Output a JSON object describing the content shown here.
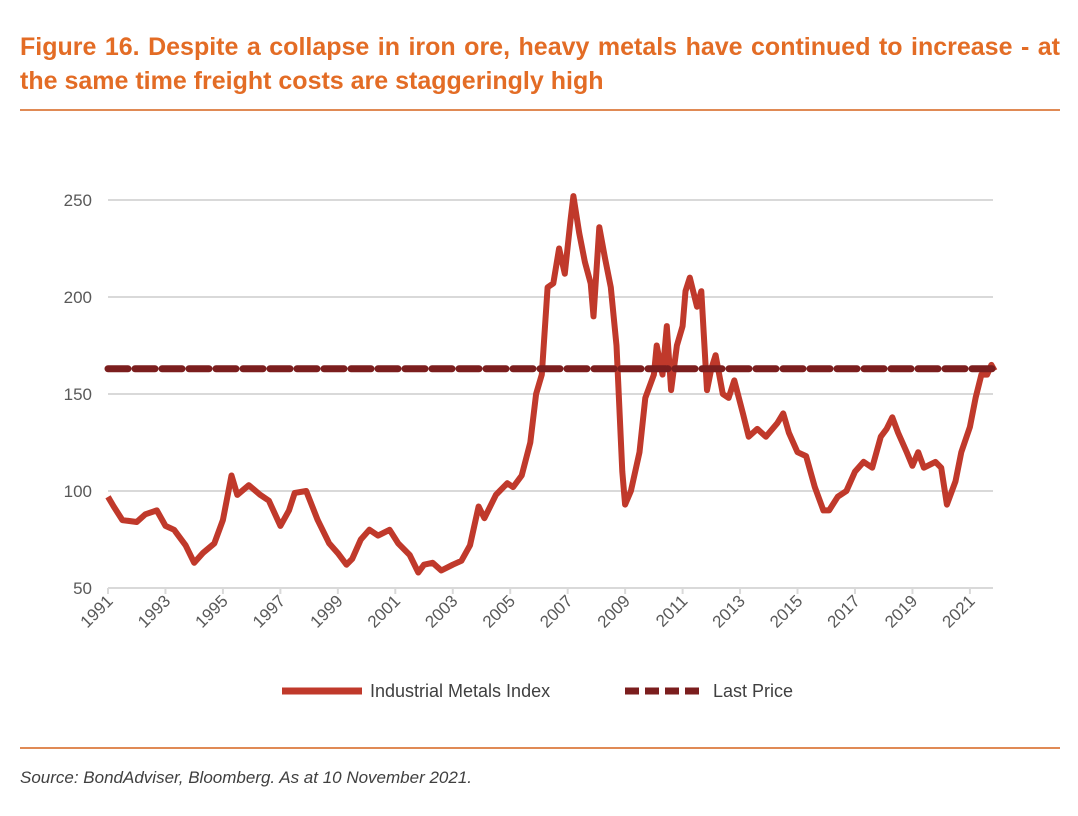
{
  "title": "Figure 16. Despite a collapse in iron ore, heavy metals have continued to increase - at the same time freight costs are staggeringly high",
  "source": "Source: BondAdviser, Bloomberg. As at 10 November 2021.",
  "chart_data": {
    "type": "line",
    "title": "Figure 16. Despite a collapse in iron ore, heavy metals have continued to increase - at the same time freight costs are staggeringly high",
    "xlabel": "",
    "ylabel": "",
    "xlim": [
      1991,
      2021.9
    ],
    "ylim": [
      50,
      250
    ],
    "yticks": [
      "50",
      "100",
      "150",
      "200",
      "250"
    ],
    "xticks": [
      "1991",
      "1993",
      "1995",
      "1997",
      "1999",
      "2001",
      "2003",
      "2005",
      "2007",
      "2009",
      "2011",
      "2013",
      "2015",
      "2017",
      "2019",
      "2021"
    ],
    "grid": true,
    "legend_position": "bottom",
    "colors": {
      "index": "#c0392b",
      "last_price": "#7b1e1e",
      "title": "#e36c25"
    },
    "series": [
      {
        "name": "Industrial Metals Index",
        "style": "solid",
        "x": [
          1991.0,
          1991.2,
          1991.5,
          1992.0,
          1992.3,
          1992.7,
          1993.0,
          1993.3,
          1993.7,
          1994.0,
          1994.3,
          1994.7,
          1995.0,
          1995.3,
          1995.5,
          1995.9,
          1996.3,
          1996.6,
          1997.0,
          1997.3,
          1997.5,
          1997.9,
          1998.3,
          1998.7,
          1999.0,
          1999.3,
          1999.5,
          1999.8,
          2000.1,
          2000.4,
          2000.8,
          2001.1,
          2001.5,
          2001.8,
          2002.0,
          2002.3,
          2002.6,
          2003.0,
          2003.3,
          2003.6,
          2003.9,
          2004.1,
          2004.5,
          2004.9,
          2005.1,
          2005.4,
          2005.7,
          2005.9,
          2006.1,
          2006.3,
          2006.5,
          2006.7,
          2006.9,
          2007.1,
          2007.2,
          2007.4,
          2007.6,
          2007.8,
          2007.9,
          2008.1,
          2008.3,
          2008.5,
          2008.7,
          2008.9,
          2009.0,
          2009.2,
          2009.5,
          2009.7,
          2010.0,
          2010.1,
          2010.3,
          2010.45,
          2010.6,
          2010.8,
          2011.0,
          2011.1,
          2011.25,
          2011.5,
          2011.65,
          2011.85,
          2012.0,
          2012.15,
          2012.4,
          2012.6,
          2012.8,
          2013.1,
          2013.3,
          2013.6,
          2013.9,
          2014.3,
          2014.5,
          2014.7,
          2015.0,
          2015.3,
          2015.6,
          2015.9,
          2016.1,
          2016.4,
          2016.7,
          2017.0,
          2017.3,
          2017.6,
          2017.9,
          2018.1,
          2018.3,
          2018.5,
          2018.8,
          2019.0,
          2019.2,
          2019.4,
          2019.8,
          2020.0,
          2020.2,
          2020.5,
          2020.7,
          2021.0,
          2021.2,
          2021.4,
          2021.6,
          2021.75,
          2021.86
        ],
        "values": [
          97,
          92,
          85,
          84,
          88,
          90,
          82,
          80,
          72,
          63,
          68,
          73,
          85,
          108,
          98,
          103,
          98,
          95,
          82,
          90,
          99,
          100,
          85,
          73,
          68,
          62,
          65,
          75,
          80,
          77,
          80,
          73,
          67,
          58,
          62,
          63,
          59,
          62,
          64,
          72,
          92,
          86,
          98,
          104,
          102,
          108,
          125,
          150,
          160,
          205,
          207,
          225,
          212,
          240,
          252,
          233,
          218,
          207,
          190,
          236,
          220,
          205,
          175,
          110,
          93,
          100,
          120,
          148,
          160,
          175,
          160,
          185,
          152,
          175,
          185,
          203,
          210,
          195,
          203,
          152,
          163,
          170,
          150,
          148,
          157,
          140,
          128,
          132,
          128,
          135,
          140,
          130,
          120,
          118,
          102,
          90,
          90,
          97,
          100,
          110,
          115,
          112,
          128,
          132,
          138,
          130,
          120,
          113,
          120,
          112,
          115,
          112,
          93,
          105,
          120,
          133,
          148,
          160,
          160,
          165,
          162
        ]
      },
      {
        "name": "Last Price",
        "style": "dashed",
        "x": [
          1991.0,
          2021.9
        ],
        "values": [
          163,
          163
        ]
      }
    ]
  }
}
